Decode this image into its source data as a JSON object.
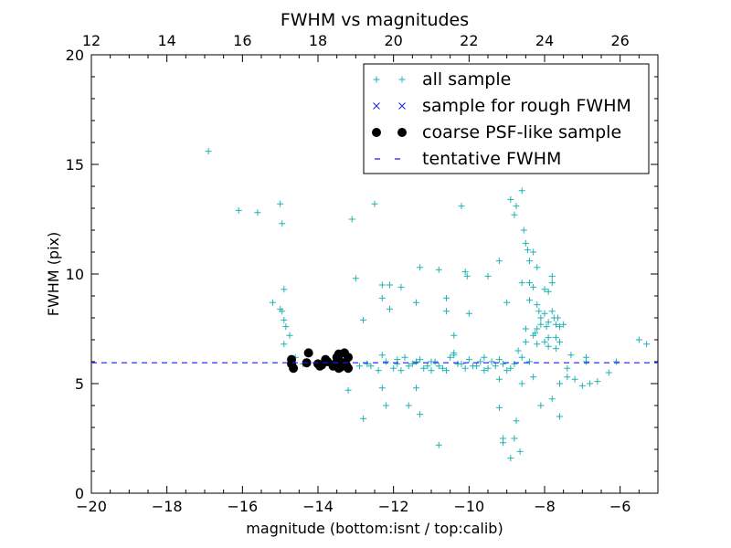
{
  "chart_data": {
    "type": "scatter",
    "title": "FWHM vs magnitudes",
    "xlabel": "magnitude (bottom:isnt / top:calib)",
    "ylabel": "FWHM (pix)",
    "xlim": [
      -20,
      -5
    ],
    "ylim": [
      0,
      20
    ],
    "top_xlim": [
      12,
      27
    ],
    "x_ticks": [
      -20,
      -18,
      -16,
      -14,
      -12,
      -10,
      -8,
      -6
    ],
    "x_tick_labels": [
      "−20",
      "−18",
      "−16",
      "−14",
      "−12",
      "−10",
      "−8",
      "−6"
    ],
    "top_ticks": [
      12,
      14,
      16,
      18,
      20,
      22,
      24,
      26
    ],
    "top_tick_labels": [
      "12",
      "14",
      "16",
      "18",
      "20",
      "22",
      "24",
      "26"
    ],
    "y_ticks": [
      0,
      5,
      10,
      15,
      20
    ],
    "y_tick_labels": [
      "0",
      "5",
      "10",
      "15",
      "20"
    ],
    "legend_position": "top-right",
    "colors": {
      "all": "#20b2b2",
      "rough": "#2020e0",
      "coarse": "#000000",
      "tentative": "#1a1aff"
    },
    "series": [
      {
        "name": "all sample",
        "marker": "plus",
        "points": [
          [
            -16.9,
            15.6
          ],
          [
            -16.1,
            12.9
          ],
          [
            -15.6,
            12.8
          ],
          [
            -15.0,
            13.2
          ],
          [
            -14.95,
            12.3
          ],
          [
            -15.2,
            8.7
          ],
          [
            -15.0,
            8.4
          ],
          [
            -14.95,
            8.3
          ],
          [
            -14.9,
            9.3
          ],
          [
            -14.9,
            7.9
          ],
          [
            -14.85,
            7.6
          ],
          [
            -14.9,
            6.8
          ],
          [
            -14.75,
            7.2
          ],
          [
            -14.6,
            6.2
          ],
          [
            -14.4,
            5.9
          ],
          [
            -13.1,
            12.5
          ],
          [
            -13.0,
            9.8
          ],
          [
            -12.8,
            7.9
          ],
          [
            -12.8,
            3.4
          ],
          [
            -13.2,
            4.7
          ],
          [
            -12.5,
            13.2
          ],
          [
            -12.3,
            8.9
          ],
          [
            -12.3,
            9.5
          ],
          [
            -12.1,
            9.5
          ],
          [
            -12.1,
            8.4
          ],
          [
            -11.8,
            9.4
          ],
          [
            -12.3,
            6.3
          ],
          [
            -12.2,
            4.0
          ],
          [
            -12.3,
            4.8
          ],
          [
            -11.6,
            4.0
          ],
          [
            -11.4,
            4.8
          ],
          [
            -11.3,
            3.6
          ],
          [
            -11.3,
            10.3
          ],
          [
            -11.4,
            8.7
          ],
          [
            -10.8,
            10.2
          ],
          [
            -10.8,
            2.2
          ],
          [
            -10.6,
            8.9
          ],
          [
            -10.6,
            8.3
          ],
          [
            -10.4,
            7.2
          ],
          [
            -10.2,
            13.1
          ],
          [
            -10.1,
            10.1
          ],
          [
            -10.05,
            9.9
          ],
          [
            -10.0,
            8.2
          ],
          [
            -9.5,
            9.9
          ],
          [
            -9.2,
            10.6
          ],
          [
            -9.2,
            3.9
          ],
          [
            -9.1,
            2.5
          ],
          [
            -9.1,
            2.3
          ],
          [
            -9.2,
            5.2
          ],
          [
            -9.0,
            8.7
          ],
          [
            -8.9,
            1.6
          ],
          [
            -8.8,
            2.5
          ],
          [
            -8.75,
            3.3
          ],
          [
            -8.65,
            1.9
          ],
          [
            -8.9,
            13.4
          ],
          [
            -8.75,
            13.1
          ],
          [
            -8.8,
            12.7
          ],
          [
            -8.6,
            13.8
          ],
          [
            -8.55,
            12.0
          ],
          [
            -8.5,
            11.4
          ],
          [
            -8.45,
            11.1
          ],
          [
            -8.4,
            10.6
          ],
          [
            -8.3,
            11.0
          ],
          [
            -8.6,
            9.6
          ],
          [
            -8.4,
            9.6
          ],
          [
            -8.3,
            9.4
          ],
          [
            -8.2,
            10.3
          ],
          [
            -8.4,
            8.8
          ],
          [
            -8.2,
            8.6
          ],
          [
            -8.0,
            9.3
          ],
          [
            -7.9,
            9.2
          ],
          [
            -7.8,
            9.9
          ],
          [
            -7.8,
            9.6
          ],
          [
            -8.1,
            8.0
          ],
          [
            -8.2,
            7.5
          ],
          [
            -8.3,
            7.2
          ],
          [
            -8.1,
            7.7
          ],
          [
            -7.95,
            7.6
          ],
          [
            -7.9,
            7.8
          ],
          [
            -7.7,
            7.7
          ],
          [
            -7.75,
            8.0
          ],
          [
            -7.6,
            7.6
          ],
          [
            -7.5,
            7.7
          ],
          [
            -7.7,
            7.1
          ],
          [
            -7.9,
            7.1
          ],
          [
            -8.5,
            7.5
          ],
          [
            -8.5,
            6.9
          ],
          [
            -8.7,
            6.5
          ],
          [
            -8.6,
            6.2
          ],
          [
            -8.4,
            6.0
          ],
          [
            -8.2,
            6.8
          ],
          [
            -8.0,
            6.9
          ],
          [
            -7.9,
            6.7
          ],
          [
            -7.7,
            6.6
          ],
          [
            -7.6,
            6.9
          ],
          [
            -7.8,
            4.3
          ],
          [
            -7.6,
            5.0
          ],
          [
            -7.6,
            3.5
          ],
          [
            -8.6,
            5.0
          ],
          [
            -8.3,
            5.3
          ],
          [
            -8.1,
            4.0
          ],
          [
            -7.4,
            5.3
          ],
          [
            -7.4,
            5.7
          ],
          [
            -7.3,
            6.3
          ],
          [
            -7.2,
            5.2
          ],
          [
            -7.0,
            4.9
          ],
          [
            -6.9,
            6.0
          ],
          [
            -6.9,
            6.2
          ],
          [
            -6.8,
            5.0
          ],
          [
            -6.6,
            5.1
          ],
          [
            -6.3,
            5.5
          ],
          [
            -6.1,
            6.0
          ],
          [
            -5.5,
            7.0
          ],
          [
            -5.3,
            6.8
          ],
          [
            -8.0,
            8.2
          ],
          [
            -7.8,
            8.3
          ],
          [
            -8.15,
            8.3
          ],
          [
            -7.65,
            8.0
          ],
          [
            -8.25,
            7.3
          ],
          [
            -11.9,
            5.9
          ],
          [
            -11.8,
            5.6
          ],
          [
            -11.6,
            5.8
          ],
          [
            -11.4,
            6.0
          ],
          [
            -11.2,
            5.7
          ],
          [
            -11.0,
            6.0
          ],
          [
            -10.8,
            5.8
          ],
          [
            -10.6,
            5.6
          ],
          [
            -10.5,
            6.2
          ],
          [
            -10.3,
            5.9
          ],
          [
            -10.1,
            5.7
          ],
          [
            -10.0,
            6.1
          ],
          [
            -9.8,
            5.8
          ],
          [
            -9.6,
            5.6
          ],
          [
            -9.4,
            6.0
          ],
          [
            -9.3,
            5.8
          ],
          [
            -9.0,
            5.6
          ],
          [
            -8.8,
            5.9
          ],
          [
            -12.6,
            5.8
          ],
          [
            -12.4,
            5.6
          ],
          [
            -12.2,
            6.0
          ],
          [
            -12.0,
            5.7
          ],
          [
            -11.7,
            6.2
          ],
          [
            -11.5,
            5.9
          ],
          [
            -11.3,
            6.1
          ],
          [
            -11.1,
            5.8
          ],
          [
            -10.9,
            6.0
          ],
          [
            -10.7,
            5.7
          ],
          [
            -10.4,
            6.3
          ],
          [
            -10.2,
            5.9
          ],
          [
            -9.9,
            5.8
          ],
          [
            -9.7,
            6.0
          ],
          [
            -9.5,
            5.7
          ],
          [
            -9.2,
            6.1
          ],
          [
            -9.1,
            5.9
          ],
          [
            -8.9,
            5.7
          ],
          [
            -12.9,
            5.8
          ],
          [
            -12.7,
            5.9
          ],
          [
            -11.9,
            6.1
          ],
          [
            -11.0,
            5.6
          ],
          [
            -10.4,
            6.4
          ],
          [
            -9.6,
            6.2
          ]
        ]
      },
      {
        "name": "sample for rough FWHM",
        "marker": "x",
        "points": []
      },
      {
        "name": "coarse PSF-like sample",
        "marker": "circle",
        "points": [
          [
            -14.7,
            6.1
          ],
          [
            -14.7,
            5.9
          ],
          [
            -14.65,
            5.7
          ],
          [
            -14.3,
            5.95
          ],
          [
            -14.25,
            6.4
          ],
          [
            -14.0,
            5.9
          ],
          [
            -13.95,
            5.8
          ],
          [
            -13.9,
            5.85
          ],
          [
            -13.8,
            6.1
          ],
          [
            -13.75,
            6.0
          ],
          [
            -13.6,
            5.8
          ],
          [
            -13.55,
            5.9
          ],
          [
            -13.5,
            6.2
          ],
          [
            -13.45,
            6.35
          ],
          [
            -13.45,
            6.1
          ],
          [
            -13.4,
            5.75
          ],
          [
            -13.35,
            5.95
          ],
          [
            -13.3,
            6.4
          ],
          [
            -13.25,
            5.85
          ],
          [
            -13.2,
            6.2
          ],
          [
            -13.2,
            5.7
          ],
          [
            -13.45,
            5.7
          ]
        ]
      },
      {
        "name": "tentative FWHM",
        "type": "hline",
        "value": 5.95
      }
    ]
  }
}
